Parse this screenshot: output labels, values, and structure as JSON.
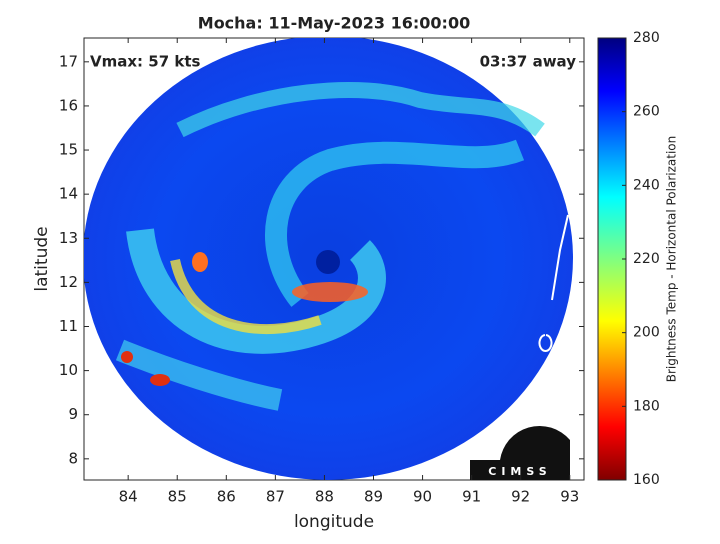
{
  "chart_data": {
    "type": "image",
    "title": "Mocha: 11-May-2023 16:00:00",
    "annotations": [
      "Vmax: 57 kts",
      "03:37 away"
    ],
    "x_label": "longitude",
    "y_label": "latitude",
    "xlim": [
      83.1,
      93.29
    ],
    "ylim": [
      7.52,
      17.54
    ],
    "xticks": [
      84,
      85,
      86,
      87,
      88,
      89,
      90,
      91,
      92,
      93
    ],
    "yticks": [
      8,
      9,
      10,
      11,
      12,
      13,
      14,
      15,
      16,
      17
    ],
    "colorbar": {
      "label": "Brightness Temp - Horizontal Polarization",
      "lim": [
        160,
        280
      ],
      "ticks": [
        160,
        180,
        200,
        220,
        240,
        260,
        280
      ]
    },
    "logo": "CIMSS"
  }
}
